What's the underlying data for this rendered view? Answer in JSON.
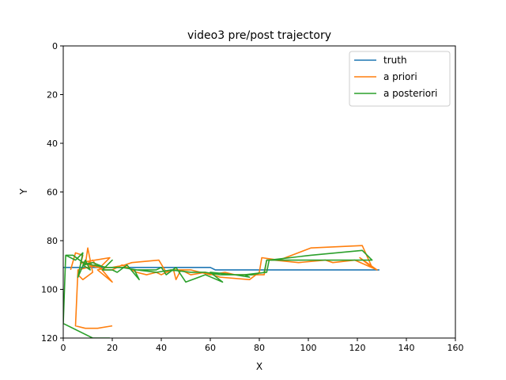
{
  "chart_data": {
    "type": "line",
    "title": "video3 pre/post trajectory",
    "xlabel": "X",
    "ylabel": "Y",
    "xlim": [
      0,
      160
    ],
    "ylim": [
      120,
      0
    ],
    "y_inverted": true,
    "xticks": [
      0,
      20,
      40,
      60,
      80,
      100,
      120,
      140,
      160
    ],
    "yticks": [
      0,
      20,
      40,
      60,
      80,
      100,
      120
    ],
    "legend_position": "top-right",
    "grid": false,
    "series": [
      {
        "name": "truth",
        "color": "#1f77b4",
        "points": [
          [
            0,
            91
          ],
          [
            60,
            91
          ],
          [
            62,
            92
          ],
          [
            129,
            92
          ]
        ]
      },
      {
        "name": "a priori",
        "color": "#ff7f0e",
        "points": [
          [
            3,
            92
          ],
          [
            5,
            85
          ],
          [
            8,
            86
          ],
          [
            6,
            94
          ],
          [
            8,
            96
          ],
          [
            12,
            93
          ],
          [
            10,
            83
          ],
          [
            9,
            90
          ],
          [
            12,
            88
          ],
          [
            14,
            91
          ],
          [
            7,
            89
          ],
          [
            13,
            88
          ],
          [
            19,
            87
          ],
          [
            15,
            91
          ],
          [
            20,
            97
          ],
          [
            14,
            92
          ],
          [
            18,
            91
          ],
          [
            20,
            91
          ],
          [
            25,
            90
          ],
          [
            28,
            89
          ],
          [
            39,
            88
          ],
          [
            42,
            93
          ],
          [
            45,
            92
          ],
          [
            46,
            96
          ],
          [
            48,
            92
          ],
          [
            52,
            94
          ],
          [
            58,
            93
          ],
          [
            64,
            95
          ],
          [
            76,
            96
          ],
          [
            80,
            93
          ],
          [
            81,
            87
          ],
          [
            88,
            88
          ],
          [
            101,
            83
          ],
          [
            122,
            82
          ],
          [
            126,
            91
          ],
          [
            121,
            87
          ],
          [
            128,
            92
          ],
          [
            119,
            88
          ],
          [
            110,
            89
          ],
          [
            107,
            88
          ],
          [
            96,
            89
          ],
          [
            86,
            88
          ],
          [
            83,
            88
          ],
          [
            82,
            94
          ],
          [
            76,
            94
          ],
          [
            70,
            94
          ],
          [
            66,
            93
          ],
          [
            60,
            94
          ],
          [
            56,
            93
          ],
          [
            52,
            92
          ],
          [
            44,
            92
          ],
          [
            40,
            94
          ],
          [
            38,
            93
          ],
          [
            34,
            94
          ],
          [
            30,
            93
          ],
          [
            28,
            92
          ],
          [
            24,
            90
          ],
          [
            20,
            92
          ],
          [
            16,
            92
          ],
          [
            13,
            90
          ],
          [
            10,
            91
          ],
          [
            6,
            92
          ],
          [
            5,
            115
          ],
          [
            9,
            116
          ],
          [
            14,
            116
          ],
          [
            20,
            115
          ]
        ]
      },
      {
        "name": "a posteriori",
        "color": "#2ca02c",
        "points": [
          [
            1,
            86
          ],
          [
            5,
            88
          ],
          [
            8,
            85
          ],
          [
            6,
            95
          ],
          [
            9,
            88
          ],
          [
            11,
            92
          ],
          [
            8,
            90
          ],
          [
            12,
            89
          ],
          [
            17,
            91
          ],
          [
            20,
            88
          ],
          [
            16,
            92
          ],
          [
            20,
            92
          ],
          [
            22,
            93
          ],
          [
            26,
            90
          ],
          [
            31,
            96
          ],
          [
            29,
            92
          ],
          [
            38,
            92
          ],
          [
            40,
            91
          ],
          [
            42,
            94
          ],
          [
            46,
            91
          ],
          [
            50,
            97
          ],
          [
            58,
            94
          ],
          [
            65,
            97
          ],
          [
            60,
            93
          ],
          [
            70,
            94
          ],
          [
            76,
            95
          ],
          [
            74,
            94
          ],
          [
            83,
            93
          ],
          [
            84,
            88
          ],
          [
            101,
            86
          ],
          [
            122,
            84
          ],
          [
            126,
            88
          ],
          [
            121,
            88
          ],
          [
            111,
            88
          ],
          [
            101,
            88
          ],
          [
            83,
            88
          ],
          [
            82,
            93
          ],
          [
            77,
            94
          ],
          [
            70,
            94
          ],
          [
            64,
            94
          ],
          [
            58,
            93
          ],
          [
            52,
            93
          ],
          [
            44,
            92
          ],
          [
            38,
            93
          ],
          [
            30,
            92
          ],
          [
            24,
            91
          ],
          [
            18,
            91
          ],
          [
            12,
            90
          ],
          [
            8,
            89
          ],
          [
            4,
            86
          ],
          [
            1,
            86
          ],
          [
            0,
            114
          ],
          [
            12,
            120
          ],
          [
            19,
            120
          ]
        ]
      }
    ]
  }
}
